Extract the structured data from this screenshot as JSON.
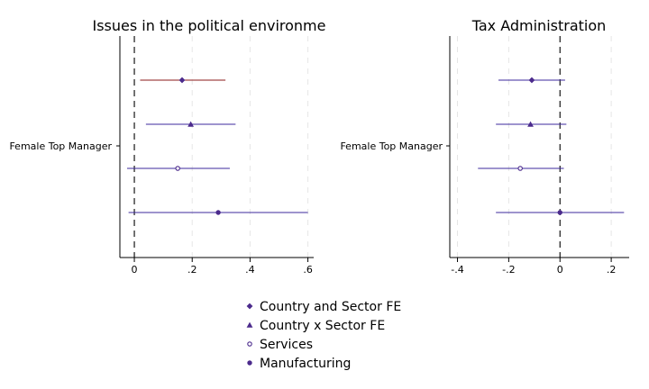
{
  "chart_data": [
    {
      "type": "scatter",
      "title": "Issues in the political environme",
      "category": "Female Top Manager",
      "xlim": [
        -0.05,
        0.62
      ],
      "xticks": [
        0,
        0.2,
        0.4,
        0.6
      ],
      "xtick_labels": [
        "0",
        ".2",
        ".4",
        ".6"
      ],
      "reference_line_x": 0,
      "grid": "vertical dashed",
      "series": [
        {
          "name": "Country and Sector FE",
          "estimate": 0.165,
          "ci": [
            0.02,
            0.315
          ]
        },
        {
          "name": "Country x Sector FE",
          "estimate": 0.195,
          "ci": [
            0.04,
            0.35
          ]
        },
        {
          "name": "Services",
          "estimate": 0.15,
          "ci": [
            -0.025,
            0.33
          ]
        },
        {
          "name": "Manufacturing",
          "estimate": 0.29,
          "ci": [
            -0.02,
            0.6
          ]
        }
      ]
    },
    {
      "type": "scatter",
      "title": "Tax Administration",
      "category": "Female Top Manager",
      "xlim": [
        -0.43,
        0.27
      ],
      "xticks": [
        -0.4,
        -0.2,
        0,
        0.2
      ],
      "xtick_labels": [
        "-.4",
        "-.2",
        "0",
        ".2"
      ],
      "reference_line_x": 0,
      "grid": "vertical dashed",
      "series": [
        {
          "name": "Country and Sector FE",
          "estimate": -0.11,
          "ci": [
            -0.24,
            0.02
          ]
        },
        {
          "name": "Country x Sector FE",
          "estimate": -0.115,
          "ci": [
            -0.25,
            0.025
          ]
        },
        {
          "name": "Services",
          "estimate": -0.155,
          "ci": [
            -0.32,
            0.015
          ]
        },
        {
          "name": "Manufacturing",
          "estimate": 0.0,
          "ci": [
            -0.25,
            0.25
          ]
        }
      ]
    }
  ],
  "legend": {
    "placement": "bottom-center",
    "items": [
      {
        "label": "Country and Sector FE",
        "marker": "diamond"
      },
      {
        "label": "Country x Sector FE",
        "marker": "triangle"
      },
      {
        "label": "Services",
        "marker": "hollow-circle"
      },
      {
        "label": "Manufacturing",
        "marker": "circle"
      }
    ]
  },
  "colors": {
    "marker": "#4b2a8c",
    "ci_line": "#3d2a9c",
    "ci_line_first": "#8b1a1a",
    "grid": "#e6e6e6",
    "axis": "#000000"
  }
}
